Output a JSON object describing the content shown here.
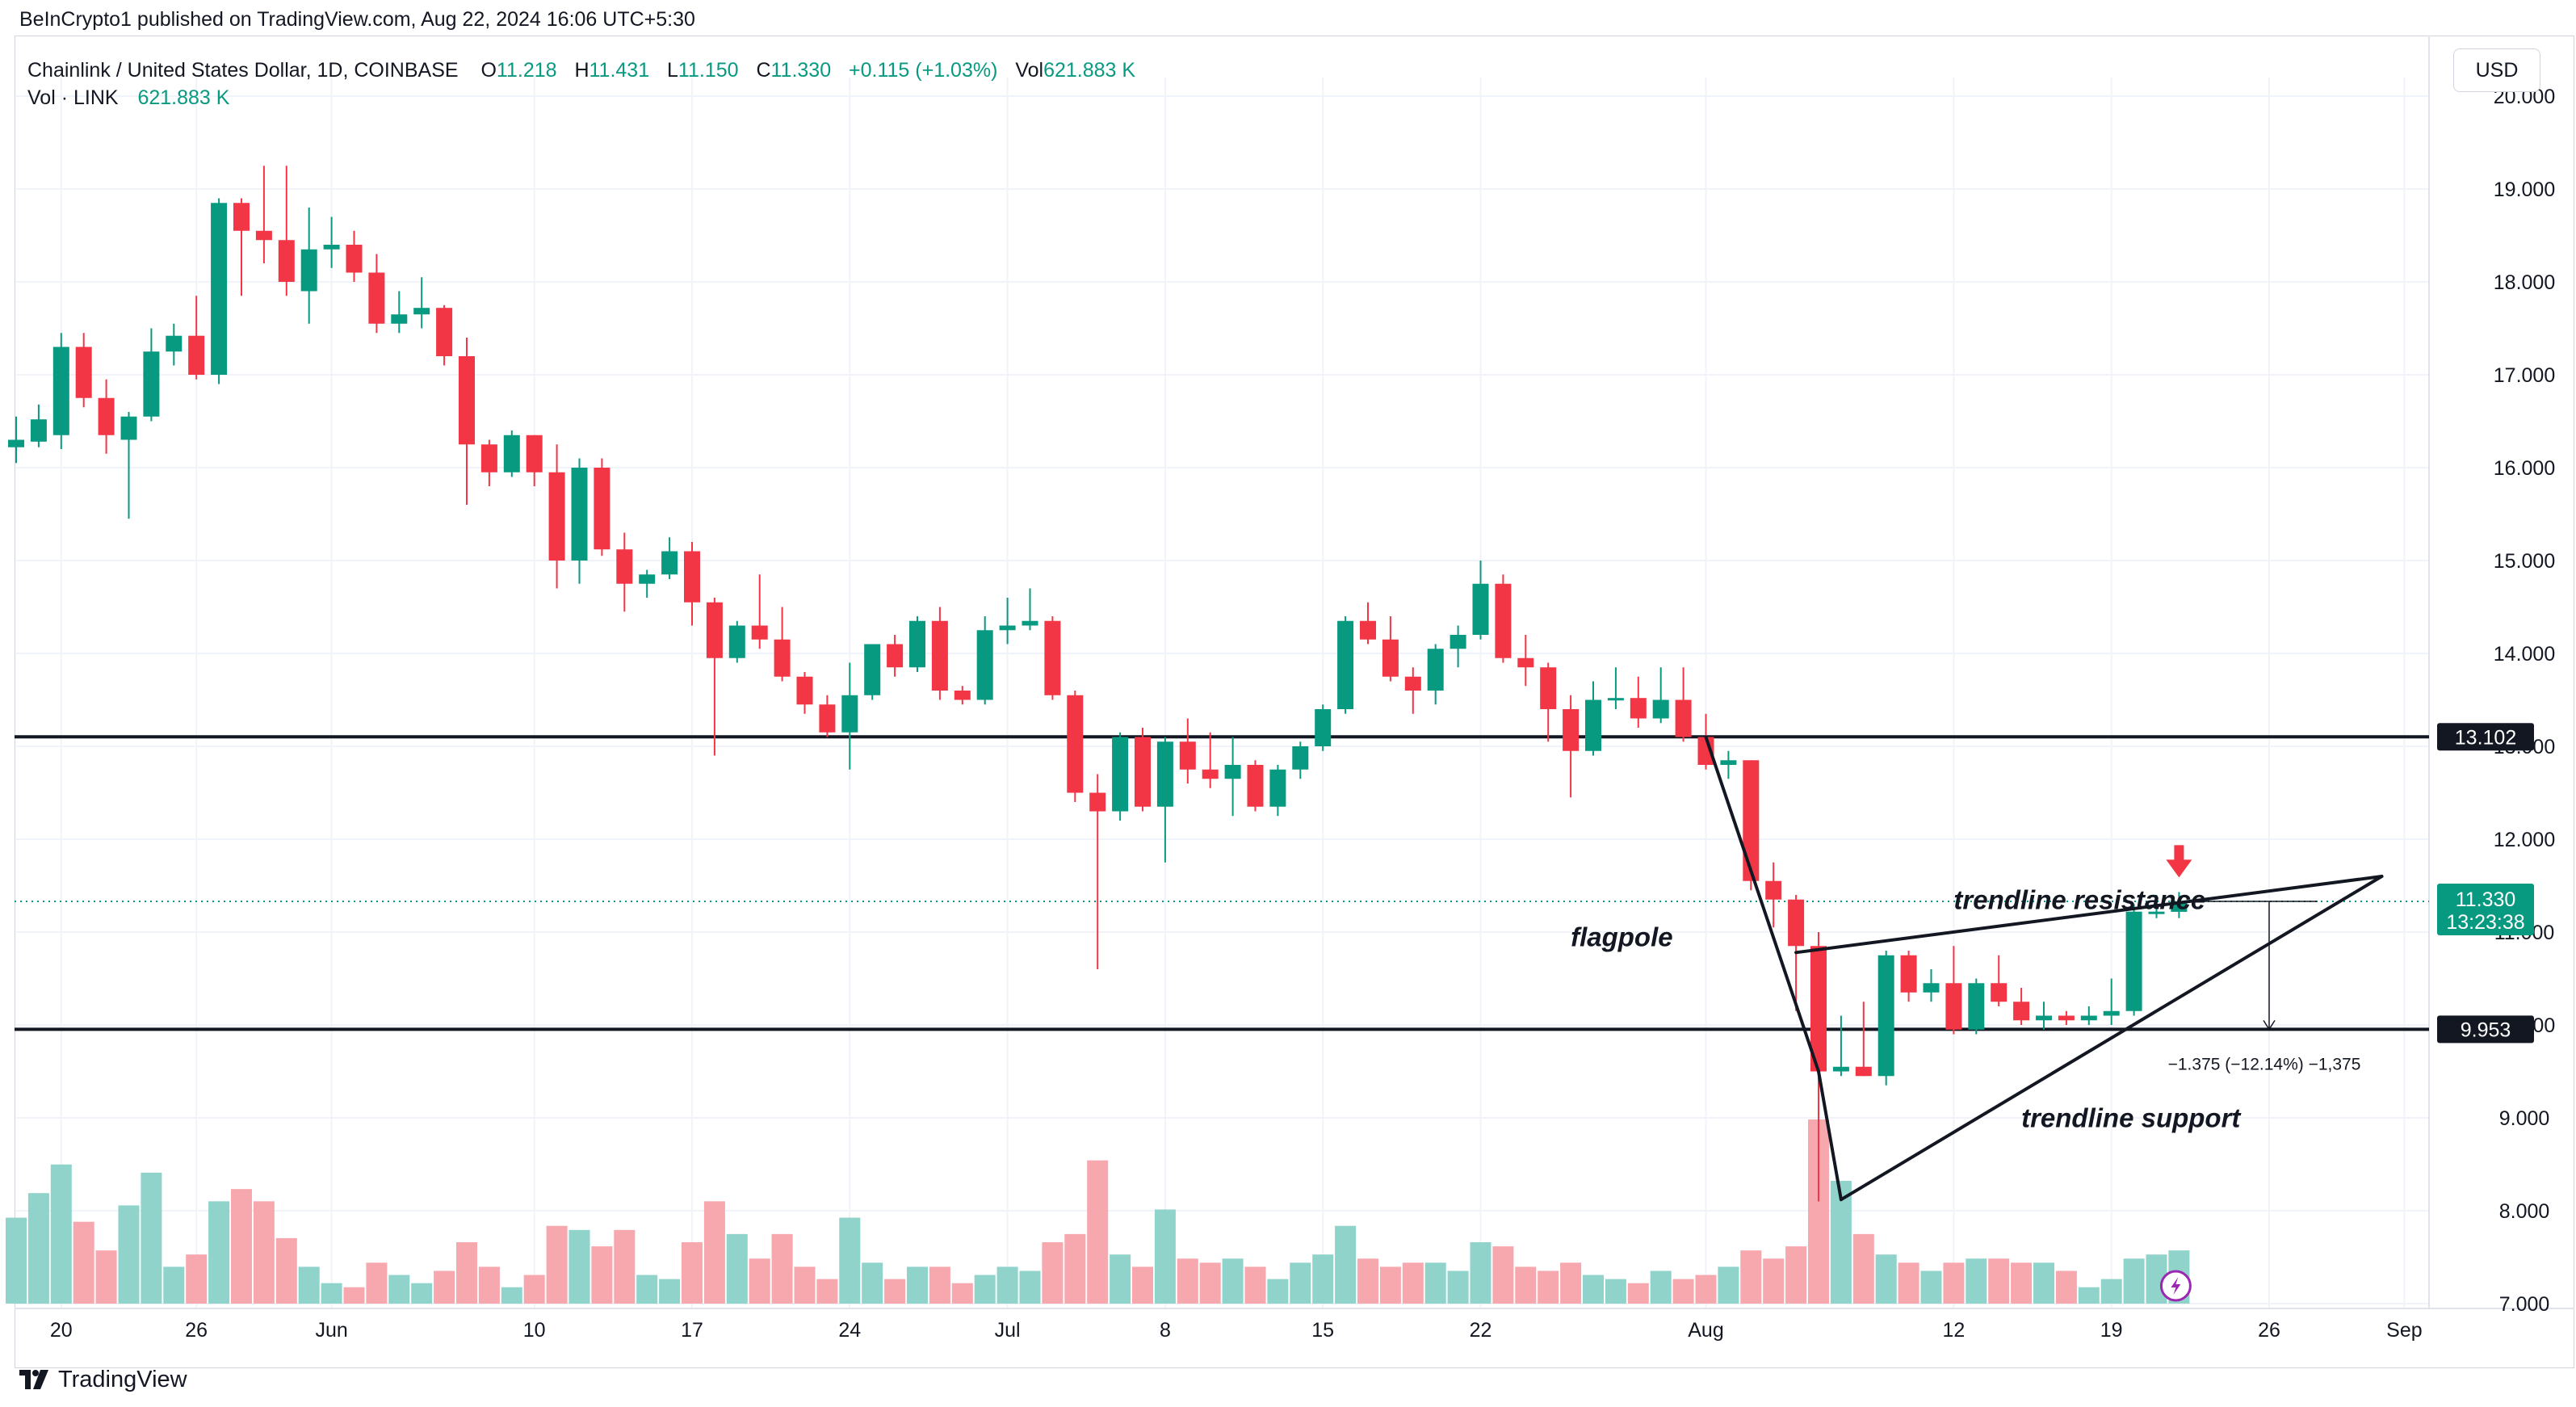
{
  "header": {
    "published_line": "BeInCrypto1 published on TradingView.com, Aug 22, 2024 16:06 UTC+5:30"
  },
  "legend": {
    "symbol": "Chainlink / United States Dollar, 1D, COINBASE",
    "o_label": "O",
    "o_value": "11.218",
    "h_label": "H",
    "h_value": "11.431",
    "l_label": "L",
    "l_value": "11.150",
    "c_label": "C",
    "c_value": "11.330",
    "change": "+0.115 (+1.03%)",
    "vol_label": "Vol",
    "vol_value": "621.883 K",
    "vol_row_label": "Vol · LINK",
    "vol_row_value": "621.883 K"
  },
  "currency": "USD",
  "brand": "TradingView",
  "colors": {
    "up": "#089981",
    "down": "#f23645",
    "up_volume": "#8fd3cb",
    "down_volume": "#f7a8ae",
    "grid": "#f0f3fa",
    "line": "#131722"
  },
  "chart_data": {
    "type": "candlestick",
    "y_axis": {
      "range": [
        7.0,
        20.2
      ],
      "ticks": [
        "7.000",
        "8.000",
        "9.000",
        "10.000",
        "11.000",
        "12.000",
        "13.000",
        "14.000",
        "15.000",
        "16.000",
        "17.000",
        "18.000",
        "19.000",
        "20.000"
      ]
    },
    "x_axis": {
      "start_date": "2024-05-18",
      "end_date": "2024-09-03",
      "ticks": [
        {
          "label": "20",
          "date": "2024-05-20"
        },
        {
          "label": "26",
          "date": "2024-05-26"
        },
        {
          "label": "Jun",
          "date": "2024-06-01"
        },
        {
          "label": "10",
          "date": "2024-06-10"
        },
        {
          "label": "17",
          "date": "2024-06-17"
        },
        {
          "label": "24",
          "date": "2024-06-24"
        },
        {
          "label": "Jul",
          "date": "2024-07-01"
        },
        {
          "label": "8",
          "date": "2024-07-08"
        },
        {
          "label": "15",
          "date": "2024-07-15"
        },
        {
          "label": "22",
          "date": "2024-07-22"
        },
        {
          "label": "Aug",
          "date": "2024-08-01"
        },
        {
          "label": "12",
          "date": "2024-08-12"
        },
        {
          "label": "19",
          "date": "2024-08-19"
        },
        {
          "label": "26",
          "date": "2024-08-26"
        },
        {
          "label": "Sep",
          "date": "2024-09-01"
        }
      ]
    },
    "horizontal_levels": [
      {
        "value": 13.102,
        "label": "13.102"
      },
      {
        "value": 9.953,
        "label": "9.953"
      }
    ],
    "last_price": {
      "value": 11.33,
      "label": "11.330",
      "countdown": "13:23:38"
    },
    "candles": [
      {
        "date": "2024-05-18",
        "o": 16.22,
        "h": 16.55,
        "l": 16.05,
        "c": 16.3,
        "v": 21
      },
      {
        "date": "2024-05-19",
        "o": 16.28,
        "h": 16.68,
        "l": 16.22,
        "c": 16.52,
        "v": 27
      },
      {
        "date": "2024-05-20",
        "o": 16.35,
        "h": 17.45,
        "l": 16.2,
        "c": 17.3,
        "v": 34
      },
      {
        "date": "2024-05-21",
        "o": 17.3,
        "h": 17.45,
        "l": 16.65,
        "c": 16.75,
        "v": 20
      },
      {
        "date": "2024-05-22",
        "o": 16.75,
        "h": 16.95,
        "l": 16.15,
        "c": 16.35,
        "v": 13
      },
      {
        "date": "2024-05-23",
        "o": 16.3,
        "h": 16.6,
        "l": 15.45,
        "c": 16.55,
        "v": 24
      },
      {
        "date": "2024-05-24",
        "o": 16.55,
        "h": 17.5,
        "l": 16.5,
        "c": 17.25,
        "v": 32
      },
      {
        "date": "2024-05-25",
        "o": 17.25,
        "h": 17.55,
        "l": 17.1,
        "c": 17.42,
        "v": 9
      },
      {
        "date": "2024-05-26",
        "o": 17.42,
        "h": 17.85,
        "l": 16.95,
        "c": 17.0,
        "v": 12
      },
      {
        "date": "2024-05-27",
        "o": 17.0,
        "h": 18.9,
        "l": 16.9,
        "c": 18.85,
        "v": 25
      },
      {
        "date": "2024-05-28",
        "o": 18.85,
        "h": 18.9,
        "l": 17.85,
        "c": 18.55,
        "v": 28
      },
      {
        "date": "2024-05-29",
        "o": 18.55,
        "h": 19.25,
        "l": 18.2,
        "c": 18.45,
        "v": 25
      },
      {
        "date": "2024-05-30",
        "o": 18.45,
        "h": 19.25,
        "l": 17.85,
        "c": 18.0,
        "v": 16
      },
      {
        "date": "2024-05-31",
        "o": 17.9,
        "h": 18.8,
        "l": 17.55,
        "c": 18.35,
        "v": 9
      },
      {
        "date": "2024-06-01",
        "o": 18.35,
        "h": 18.7,
        "l": 18.15,
        "c": 18.4,
        "v": 5
      },
      {
        "date": "2024-06-02",
        "o": 18.4,
        "h": 18.55,
        "l": 18.0,
        "c": 18.1,
        "v": 4
      },
      {
        "date": "2024-06-03",
        "o": 18.1,
        "h": 18.3,
        "l": 17.45,
        "c": 17.55,
        "v": 10
      },
      {
        "date": "2024-06-04",
        "o": 17.55,
        "h": 17.9,
        "l": 17.45,
        "c": 17.65,
        "v": 7
      },
      {
        "date": "2024-06-05",
        "o": 17.65,
        "h": 18.05,
        "l": 17.5,
        "c": 17.72,
        "v": 5
      },
      {
        "date": "2024-06-06",
        "o": 17.72,
        "h": 17.75,
        "l": 17.1,
        "c": 17.2,
        "v": 8
      },
      {
        "date": "2024-06-07",
        "o": 17.2,
        "h": 17.4,
        "l": 15.6,
        "c": 16.25,
        "v": 15
      },
      {
        "date": "2024-06-08",
        "o": 16.25,
        "h": 16.3,
        "l": 15.8,
        "c": 15.95,
        "v": 9
      },
      {
        "date": "2024-06-09",
        "o": 15.95,
        "h": 16.4,
        "l": 15.9,
        "c": 16.35,
        "v": 4
      },
      {
        "date": "2024-06-10",
        "o": 16.35,
        "h": 16.35,
        "l": 15.8,
        "c": 15.95,
        "v": 7
      },
      {
        "date": "2024-06-11",
        "o": 15.95,
        "h": 16.25,
        "l": 14.7,
        "c": 15.0,
        "v": 19
      },
      {
        "date": "2024-06-12",
        "o": 15.0,
        "h": 16.1,
        "l": 14.75,
        "c": 16.0,
        "v": 18
      },
      {
        "date": "2024-06-13",
        "o": 16.0,
        "h": 16.1,
        "l": 15.05,
        "c": 15.12,
        "v": 14
      },
      {
        "date": "2024-06-14",
        "o": 15.12,
        "h": 15.3,
        "l": 14.45,
        "c": 14.75,
        "v": 18
      },
      {
        "date": "2024-06-15",
        "o": 14.75,
        "h": 14.9,
        "l": 14.6,
        "c": 14.85,
        "v": 7
      },
      {
        "date": "2024-06-16",
        "o": 14.85,
        "h": 15.25,
        "l": 14.8,
        "c": 15.1,
        "v": 6
      },
      {
        "date": "2024-06-17",
        "o": 15.1,
        "h": 15.2,
        "l": 14.3,
        "c": 14.55,
        "v": 15
      },
      {
        "date": "2024-06-18",
        "o": 14.55,
        "h": 14.6,
        "l": 12.9,
        "c": 13.95,
        "v": 25
      },
      {
        "date": "2024-06-19",
        "o": 13.95,
        "h": 14.35,
        "l": 13.9,
        "c": 14.3,
        "v": 17
      },
      {
        "date": "2024-06-20",
        "o": 14.3,
        "h": 14.85,
        "l": 14.05,
        "c": 14.15,
        "v": 11
      },
      {
        "date": "2024-06-21",
        "o": 14.15,
        "h": 14.5,
        "l": 13.7,
        "c": 13.75,
        "v": 17
      },
      {
        "date": "2024-06-22",
        "o": 13.75,
        "h": 13.8,
        "l": 13.35,
        "c": 13.45,
        "v": 9
      },
      {
        "date": "2024-06-23",
        "o": 13.45,
        "h": 13.55,
        "l": 13.1,
        "c": 13.15,
        "v": 6
      },
      {
        "date": "2024-06-24",
        "o": 13.15,
        "h": 13.9,
        "l": 12.75,
        "c": 13.55,
        "v": 21
      },
      {
        "date": "2024-06-25",
        "o": 13.55,
        "h": 14.1,
        "l": 13.5,
        "c": 14.1,
        "v": 10
      },
      {
        "date": "2024-06-26",
        "o": 14.1,
        "h": 14.2,
        "l": 13.75,
        "c": 13.85,
        "v": 6
      },
      {
        "date": "2024-06-27",
        "o": 13.85,
        "h": 14.4,
        "l": 13.8,
        "c": 14.35,
        "v": 9
      },
      {
        "date": "2024-06-28",
        "o": 14.35,
        "h": 14.5,
        "l": 13.5,
        "c": 13.6,
        "v": 9
      },
      {
        "date": "2024-06-29",
        "o": 13.6,
        "h": 13.65,
        "l": 13.45,
        "c": 13.5,
        "v": 5
      },
      {
        "date": "2024-06-30",
        "o": 13.5,
        "h": 14.4,
        "l": 13.45,
        "c": 14.25,
        "v": 7
      },
      {
        "date": "2024-07-01",
        "o": 14.25,
        "h": 14.6,
        "l": 14.1,
        "c": 14.3,
        "v": 9
      },
      {
        "date": "2024-07-02",
        "o": 14.3,
        "h": 14.7,
        "l": 14.25,
        "c": 14.35,
        "v": 8
      },
      {
        "date": "2024-07-03",
        "o": 14.35,
        "h": 14.4,
        "l": 13.5,
        "c": 13.55,
        "v": 15
      },
      {
        "date": "2024-07-04",
        "o": 13.55,
        "h": 13.6,
        "l": 12.4,
        "c": 12.5,
        "v": 17
      },
      {
        "date": "2024-07-05",
        "o": 12.5,
        "h": 12.7,
        "l": 10.6,
        "c": 12.3,
        "v": 35
      },
      {
        "date": "2024-07-06",
        "o": 12.3,
        "h": 13.15,
        "l": 12.2,
        "c": 13.1,
        "v": 12
      },
      {
        "date": "2024-07-07",
        "o": 13.1,
        "h": 13.2,
        "l": 12.3,
        "c": 12.35,
        "v": 9
      },
      {
        "date": "2024-07-08",
        "o": 12.35,
        "h": 13.1,
        "l": 11.75,
        "c": 13.05,
        "v": 23
      },
      {
        "date": "2024-07-09",
        "o": 13.05,
        "h": 13.3,
        "l": 12.6,
        "c": 12.75,
        "v": 11
      },
      {
        "date": "2024-07-10",
        "o": 12.75,
        "h": 13.15,
        "l": 12.55,
        "c": 12.65,
        "v": 10
      },
      {
        "date": "2024-07-11",
        "o": 12.65,
        "h": 13.1,
        "l": 12.25,
        "c": 12.8,
        "v": 11
      },
      {
        "date": "2024-07-12",
        "o": 12.8,
        "h": 12.85,
        "l": 12.3,
        "c": 12.35,
        "v": 9
      },
      {
        "date": "2024-07-13",
        "o": 12.35,
        "h": 12.8,
        "l": 12.25,
        "c": 12.75,
        "v": 6
      },
      {
        "date": "2024-07-14",
        "o": 12.75,
        "h": 13.05,
        "l": 12.65,
        "c": 13.0,
        "v": 10
      },
      {
        "date": "2024-07-15",
        "o": 13.0,
        "h": 13.45,
        "l": 12.95,
        "c": 13.4,
        "v": 12
      },
      {
        "date": "2024-07-16",
        "o": 13.4,
        "h": 14.4,
        "l": 13.35,
        "c": 14.35,
        "v": 19
      },
      {
        "date": "2024-07-17",
        "o": 14.35,
        "h": 14.55,
        "l": 14.1,
        "c": 14.15,
        "v": 11
      },
      {
        "date": "2024-07-18",
        "o": 14.15,
        "h": 14.4,
        "l": 13.7,
        "c": 13.75,
        "v": 9
      },
      {
        "date": "2024-07-19",
        "o": 13.75,
        "h": 13.85,
        "l": 13.35,
        "c": 13.6,
        "v": 10
      },
      {
        "date": "2024-07-20",
        "o": 13.6,
        "h": 14.1,
        "l": 13.45,
        "c": 14.05,
        "v": 10
      },
      {
        "date": "2024-07-21",
        "o": 14.05,
        "h": 14.3,
        "l": 13.85,
        "c": 14.2,
        "v": 8
      },
      {
        "date": "2024-07-22",
        "o": 14.2,
        "h": 15.0,
        "l": 14.15,
        "c": 14.75,
        "v": 15
      },
      {
        "date": "2024-07-23",
        "o": 14.75,
        "h": 14.85,
        "l": 13.9,
        "c": 13.95,
        "v": 14
      },
      {
        "date": "2024-07-24",
        "o": 13.95,
        "h": 14.2,
        "l": 13.65,
        "c": 13.85,
        "v": 9
      },
      {
        "date": "2024-07-25",
        "o": 13.85,
        "h": 13.9,
        "l": 13.05,
        "c": 13.4,
        "v": 8
      },
      {
        "date": "2024-07-26",
        "o": 13.4,
        "h": 13.55,
        "l": 12.45,
        "c": 12.95,
        "v": 10
      },
      {
        "date": "2024-07-27",
        "o": 12.95,
        "h": 13.7,
        "l": 12.9,
        "c": 13.5,
        "v": 7
      },
      {
        "date": "2024-07-28",
        "o": 13.5,
        "h": 13.85,
        "l": 13.4,
        "c": 13.52,
        "v": 6
      },
      {
        "date": "2024-07-29",
        "o": 13.52,
        "h": 13.75,
        "l": 13.2,
        "c": 13.3,
        "v": 5
      },
      {
        "date": "2024-07-30",
        "o": 13.3,
        "h": 13.85,
        "l": 13.25,
        "c": 13.5,
        "v": 8
      },
      {
        "date": "2024-07-31",
        "o": 13.5,
        "h": 13.85,
        "l": 13.05,
        "c": 13.1,
        "v": 6
      },
      {
        "date": "2024-08-01",
        "o": 13.1,
        "h": 13.35,
        "l": 12.75,
        "c": 12.8,
        "v": 7
      },
      {
        "date": "2024-08-02",
        "o": 12.8,
        "h": 12.95,
        "l": 12.65,
        "c": 12.85,
        "v": 9
      },
      {
        "date": "2024-08-03",
        "o": 12.85,
        "h": 12.85,
        "l": 11.45,
        "c": 11.55,
        "v": 13
      },
      {
        "date": "2024-08-04",
        "o": 11.55,
        "h": 11.75,
        "l": 11.05,
        "c": 11.35,
        "v": 11
      },
      {
        "date": "2024-08-05",
        "o": 11.35,
        "h": 11.4,
        "l": 10.15,
        "c": 10.85,
        "v": 14
      },
      {
        "date": "2024-08-06",
        "o": 10.85,
        "h": 11.0,
        "l": 8.1,
        "c": 9.5,
        "v": 45
      },
      {
        "date": "2024-08-07",
        "o": 9.5,
        "h": 10.1,
        "l": 9.45,
        "c": 9.55,
        "v": 30
      },
      {
        "date": "2024-08-08",
        "o": 9.55,
        "h": 10.25,
        "l": 9.45,
        "c": 9.45,
        "v": 17
      },
      {
        "date": "2024-08-09",
        "o": 9.45,
        "h": 10.8,
        "l": 9.35,
        "c": 10.75,
        "v": 12
      },
      {
        "date": "2024-08-10",
        "o": 10.75,
        "h": 10.8,
        "l": 10.25,
        "c": 10.35,
        "v": 10
      },
      {
        "date": "2024-08-11",
        "o": 10.35,
        "h": 10.6,
        "l": 10.25,
        "c": 10.45,
        "v": 8
      },
      {
        "date": "2024-08-12",
        "o": 10.45,
        "h": 10.85,
        "l": 9.9,
        "c": 9.95,
        "v": 10
      },
      {
        "date": "2024-08-13",
        "o": 9.95,
        "h": 10.5,
        "l": 9.9,
        "c": 10.45,
        "v": 11
      },
      {
        "date": "2024-08-14",
        "o": 10.45,
        "h": 10.75,
        "l": 10.2,
        "c": 10.25,
        "v": 11
      },
      {
        "date": "2024-08-15",
        "o": 10.25,
        "h": 10.4,
        "l": 10.0,
        "c": 10.05,
        "v": 10
      },
      {
        "date": "2024-08-16",
        "o": 10.05,
        "h": 10.25,
        "l": 9.95,
        "c": 10.1,
        "v": 10
      },
      {
        "date": "2024-08-17",
        "o": 10.1,
        "h": 10.15,
        "l": 10.0,
        "c": 10.05,
        "v": 8
      },
      {
        "date": "2024-08-18",
        "o": 10.05,
        "h": 10.2,
        "l": 10.0,
        "c": 10.1,
        "v": 4
      },
      {
        "date": "2024-08-19",
        "o": 10.1,
        "h": 10.5,
        "l": 10.0,
        "c": 10.15,
        "v": 6
      },
      {
        "date": "2024-08-20",
        "o": 10.15,
        "h": 11.3,
        "l": 10.1,
        "c": 11.22,
        "v": 11
      },
      {
        "date": "2024-08-21",
        "o": 11.22,
        "h": 11.4,
        "l": 11.15,
        "c": 11.22,
        "v": 12
      },
      {
        "date": "2024-08-22",
        "o": 11.218,
        "h": 11.431,
        "l": 11.15,
        "c": 11.33,
        "v": 13
      }
    ],
    "annotations": [
      {
        "text": "trendline resistance",
        "date": "2024-08-12",
        "price": 11.25
      },
      {
        "text": "flagpole",
        "date": "2024-07-26",
        "price": 10.85
      },
      {
        "text": "trendline support",
        "date": "2024-08-15",
        "price": 8.9
      }
    ],
    "trendlines": [
      {
        "name": "flagpole",
        "from": {
          "date": "2024-08-01",
          "price": 13.1
        },
        "to": {
          "date": "2024-08-06",
          "price": 9.5
        }
      },
      {
        "name": "flagpole-lower",
        "from": {
          "date": "2024-08-06",
          "price": 9.5
        },
        "to": {
          "date": "2024-08-07",
          "price": 8.12
        }
      },
      {
        "name": "resistance",
        "from": {
          "date": "2024-08-05",
          "price": 10.78
        },
        "to": {
          "date": "2024-08-31",
          "price": 11.6
        }
      },
      {
        "name": "support",
        "from": {
          "date": "2024-08-07",
          "price": 8.12
        },
        "to": {
          "date": "2024-08-31",
          "price": 11.6
        }
      }
    ],
    "measurement": {
      "text": "−1.375 (−12.14%) −1,375",
      "from_price": 11.33,
      "to_price": 9.953,
      "date": "2024-08-26"
    },
    "signal": {
      "type": "red-down-arrow",
      "date": "2024-08-22"
    }
  }
}
